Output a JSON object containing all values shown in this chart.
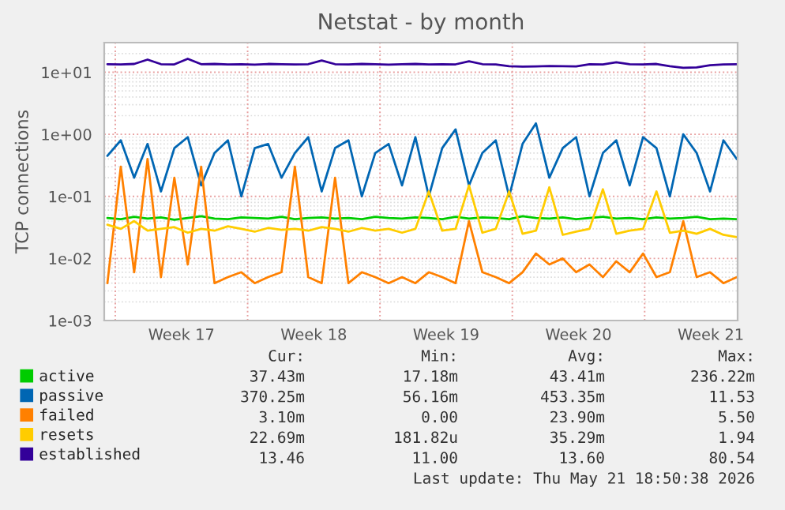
{
  "chart_data": {
    "type": "line",
    "title": "Netstat - by month",
    "ylabel": "TCP connections",
    "log": "y",
    "grid": true,
    "legend": "bottom",
    "xlim": [
      "2026-04-19T10:00",
      "2026-05-22T22:00"
    ],
    "xticks": [
      {
        "value": "2026-04-23T12:00",
        "label": "Week 17"
      },
      {
        "value": "2026-04-30T12:00",
        "label": "Week 18"
      },
      {
        "value": "2026-05-07T12:00",
        "label": "Week 19"
      },
      {
        "value": "2026-05-14T12:00",
        "label": "Week 20"
      },
      {
        "value": "2026-05-21T12:00",
        "label": "Week 21"
      },
      {
        "value": "2026-04-20",
        "label": null
      },
      {
        "value": "2026-04-27",
        "label": null
      },
      {
        "value": "2026-05-04",
        "label": null
      },
      {
        "value": "2026-05-11",
        "label": null
      },
      {
        "value": "2026-05-18",
        "label": null
      }
    ],
    "ylim": [
      0.001,
      30
    ],
    "yticks": [
      {
        "value": 0.001,
        "label": "1e-03"
      },
      {
        "value": 0.01,
        "label": "1e-02"
      },
      {
        "value": 0.1,
        "label": "1e-01"
      },
      {
        "value": 1,
        "label": "1e+00"
      },
      {
        "value": 10,
        "label": "1e+01"
      }
    ],
    "x": [
      "2026-04-19T14:00",
      "2026-04-20T07:00",
      "2026-04-21T00:00",
      "2026-04-21T17:00",
      "2026-04-22T10:00",
      "2026-04-23T03:00",
      "2026-04-23T20:00",
      "2026-04-24T13:00",
      "2026-04-25T06:00",
      "2026-04-25T23:00",
      "2026-04-26T16:00",
      "2026-04-27T09:00",
      "2026-04-28T02:00",
      "2026-04-28T19:00",
      "2026-04-29T12:00",
      "2026-04-30T05:00",
      "2026-04-30T22:00",
      "2026-05-01T15:00",
      "2026-05-02T08:00",
      "2026-05-03T01:00",
      "2026-05-03T18:00",
      "2026-05-04T11:00",
      "2026-05-05T04:00",
      "2026-05-05T21:00",
      "2026-05-06T14:00",
      "2026-05-07T07:00",
      "2026-05-08T00:00",
      "2026-05-08T17:00",
      "2026-05-09T10:00",
      "2026-05-10T03:00",
      "2026-05-10T20:00",
      "2026-05-11T13:00",
      "2026-05-12T06:00",
      "2026-05-12T23:00",
      "2026-05-13T16:00",
      "2026-05-14T09:00",
      "2026-05-15T02:00",
      "2026-05-15T19:00",
      "2026-05-16T12:00",
      "2026-05-17T05:00",
      "2026-05-17T22:00",
      "2026-05-18T15:00",
      "2026-05-19T08:00",
      "2026-05-20T01:00",
      "2026-05-20T18:00",
      "2026-05-21T11:00",
      "2026-05-22T04:00",
      "2026-05-22T21:00"
    ],
    "series": [
      {
        "name": "active",
        "color": "#00cc00",
        "values": [
          0.045,
          0.043,
          0.047,
          0.044,
          0.046,
          0.042,
          0.045,
          0.048,
          0.044,
          0.043,
          0.046,
          0.045,
          0.044,
          0.047,
          0.043,
          0.045,
          0.046,
          0.044,
          0.045,
          0.043,
          0.047,
          0.045,
          0.044,
          0.046,
          0.045,
          0.043,
          0.047,
          0.044,
          0.046,
          0.045,
          0.043,
          0.048,
          0.045,
          0.044,
          0.046,
          0.043,
          0.045,
          0.047,
          0.044,
          0.045,
          0.043,
          0.046,
          0.044,
          0.045,
          0.047,
          0.043,
          0.044,
          0.043
        ]
      },
      {
        "name": "passive",
        "color": "#0066b3",
        "values": [
          0.45,
          0.8,
          0.2,
          0.7,
          0.12,
          0.6,
          0.9,
          0.15,
          0.5,
          0.8,
          0.1,
          0.6,
          0.7,
          0.2,
          0.5,
          0.9,
          0.12,
          0.6,
          0.8,
          0.1,
          0.5,
          0.7,
          0.15,
          0.9,
          0.1,
          0.6,
          1.2,
          0.15,
          0.5,
          0.8,
          0.1,
          0.7,
          1.5,
          0.2,
          0.6,
          0.9,
          0.1,
          0.5,
          0.8,
          0.15,
          0.9,
          0.6,
          0.1,
          1.0,
          0.5,
          0.12,
          0.8,
          0.4
        ]
      },
      {
        "name": "failed",
        "color": "#ff8000",
        "values": [
          0.004,
          0.3,
          0.006,
          0.4,
          0.005,
          0.2,
          0.008,
          0.3,
          0.004,
          0.005,
          0.006,
          0.004,
          0.005,
          0.006,
          0.3,
          0.005,
          0.004,
          0.2,
          0.004,
          0.006,
          0.005,
          0.004,
          0.005,
          0.004,
          0.006,
          0.005,
          0.004,
          0.04,
          0.006,
          0.005,
          0.004,
          0.006,
          0.012,
          0.008,
          0.01,
          0.006,
          0.008,
          0.005,
          0.009,
          0.006,
          0.012,
          0.005,
          0.006,
          0.04,
          0.005,
          0.006,
          0.004,
          0.005
        ]
      },
      {
        "name": "resets",
        "color": "#ffcc00",
        "values": [
          0.035,
          0.03,
          0.04,
          0.028,
          0.03,
          0.032,
          0.026,
          0.03,
          0.028,
          0.033,
          0.03,
          0.027,
          0.031,
          0.029,
          0.03,
          0.028,
          0.032,
          0.03,
          0.027,
          0.031,
          0.028,
          0.03,
          0.026,
          0.03,
          0.12,
          0.028,
          0.03,
          0.15,
          0.026,
          0.03,
          0.12,
          0.025,
          0.028,
          0.14,
          0.024,
          0.027,
          0.03,
          0.13,
          0.025,
          0.028,
          0.03,
          0.12,
          0.026,
          0.028,
          0.025,
          0.03,
          0.024,
          0.022
        ]
      },
      {
        "name": "established",
        "color": "#330099",
        "values": [
          13.5,
          13.4,
          13.6,
          16.0,
          13.5,
          13.4,
          16.5,
          13.5,
          13.6,
          13.4,
          13.5,
          13.3,
          13.6,
          13.5,
          13.4,
          13.5,
          15.5,
          13.5,
          13.4,
          13.6,
          13.5,
          13.3,
          13.5,
          13.6,
          13.4,
          13.5,
          13.4,
          15.0,
          13.5,
          13.4,
          12.5,
          12.3,
          12.4,
          12.6,
          12.5,
          12.4,
          13.5,
          13.4,
          14.5,
          13.5,
          13.4,
          13.6,
          12.5,
          11.8,
          12.0,
          13.0,
          13.4,
          13.5
        ]
      }
    ],
    "annotations": [
      "Cur:",
      "Min:",
      "Avg:",
      "Max:",
      "37.43m",
      "17.18m",
      "43.41m",
      "236.22m",
      "370.25m",
      "56.16m",
      "453.35m",
      "11.53",
      "3.10m",
      "0.00",
      "23.90m",
      "5.50",
      "22.69m",
      "181.82u",
      "35.29m",
      "1.94",
      "13.46",
      "11.00",
      "13.60",
      "80.54",
      "Last update: Thu May 21 18:50:38 2026"
    ]
  }
}
